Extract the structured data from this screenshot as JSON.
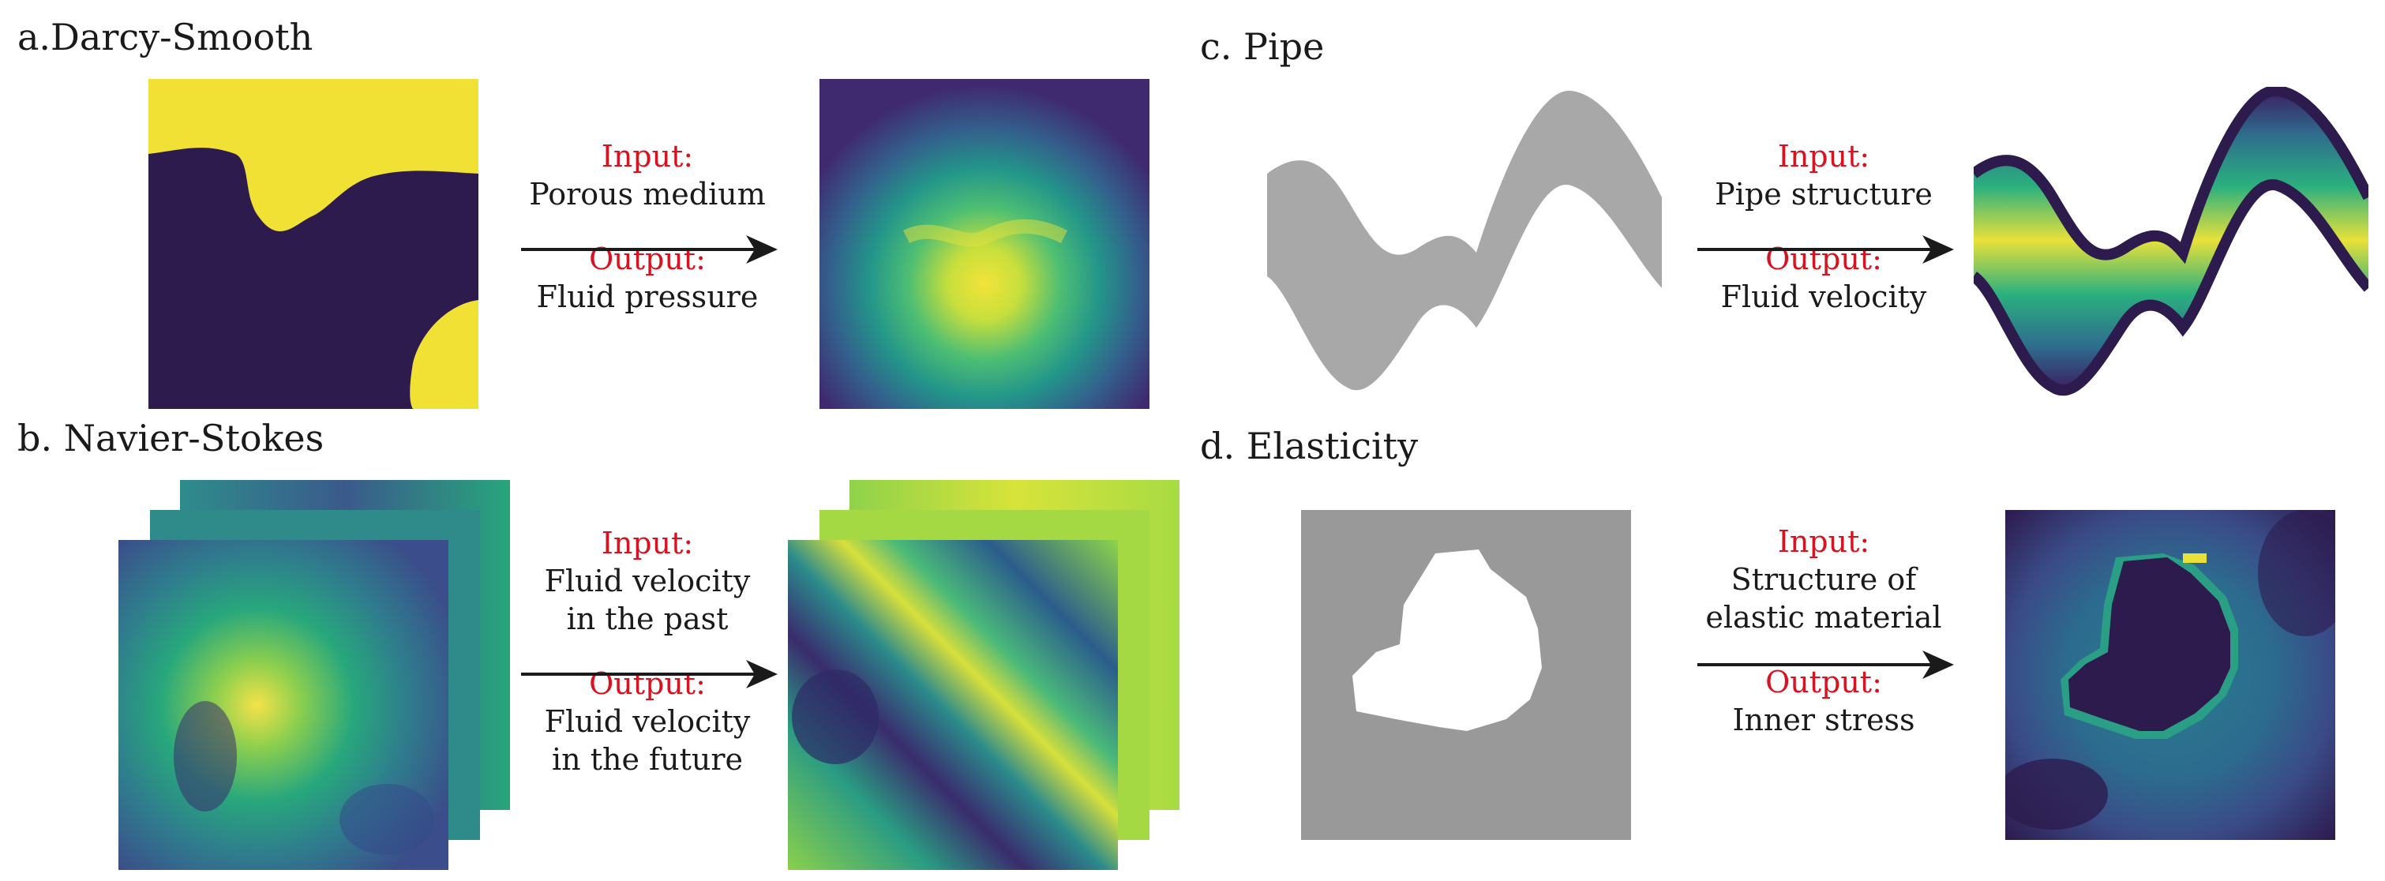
{
  "panels": {
    "a": {
      "title": "a.Darcy-Smooth",
      "input_label": "Input:",
      "input_text": [
        "Porous medium"
      ],
      "output_label": "Output:",
      "output_text": [
        "Fluid pressure"
      ]
    },
    "b": {
      "title": "b. Navier-Stokes",
      "input_label": "Input:",
      "input_text": [
        "Fluid velocity",
        "in the past"
      ],
      "output_label": "Output:",
      "output_text": [
        "Fluid velocity",
        "in the future"
      ]
    },
    "c": {
      "title": "c. Pipe",
      "input_label": "Input:",
      "input_text": [
        "Pipe structure"
      ],
      "output_label": "Output:",
      "output_text": [
        "Fluid velocity"
      ]
    },
    "d": {
      "title": "d. Elasticity",
      "input_label": "Input:",
      "input_text": [
        "Structure of",
        "elastic material"
      ],
      "output_label": "Output:",
      "output_text": [
        "Inner stress"
      ]
    }
  },
  "colors": {
    "label_red": "#d8121f",
    "viridis_dark": "#2d1b4e",
    "viridis_yellow": "#f0e134",
    "gray": "#a6a6a6",
    "mask_gray": "#999999"
  }
}
